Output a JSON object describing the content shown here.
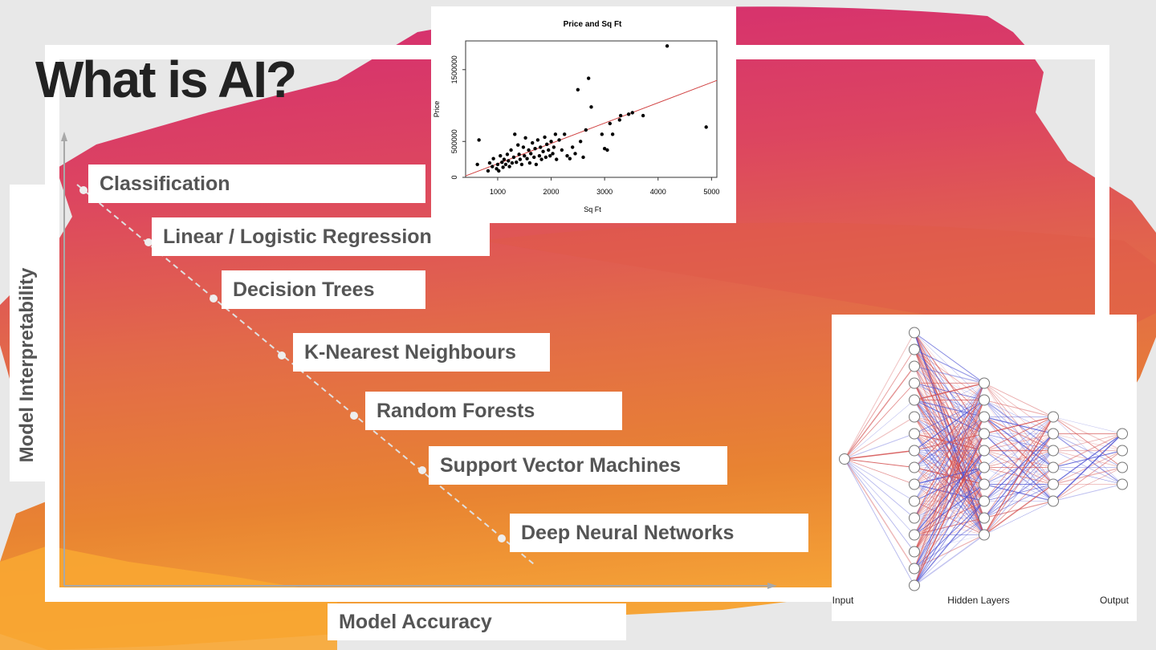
{
  "slide": {
    "title": "What is AI?",
    "y_axis_label": "Model Interpretability",
    "x_axis_label": "Model Accuracy",
    "methods": [
      "Classification",
      "Linear / Logistic Regression",
      "Decision Trees",
      "K-Nearest Neighbours",
      "Random Forests",
      "Support Vector Machines",
      "Deep Neural Networks"
    ]
  },
  "chart_data": {
    "type": "scatter",
    "title": "Price and Sq Ft",
    "xlabel": "Sq Ft",
    "ylabel": "Price",
    "xlim": [
      400,
      5100
    ],
    "ylim": [
      0,
      1900000
    ],
    "xticks": [
      "1000",
      "2000",
      "3000",
      "4000",
      "5000"
    ],
    "yticks": [
      "0",
      "500000",
      "1500000"
    ],
    "points": [
      [
        620,
        180000
      ],
      [
        650,
        520000
      ],
      [
        820,
        90000
      ],
      [
        850,
        200000
      ],
      [
        900,
        150000
      ],
      [
        920,
        260000
      ],
      [
        980,
        120000
      ],
      [
        1000,
        180000
      ],
      [
        1020,
        90000
      ],
      [
        1050,
        300000
      ],
      [
        1080,
        210000
      ],
      [
        1100,
        140000
      ],
      [
        1120,
        250000
      ],
      [
        1150,
        180000
      ],
      [
        1180,
        320000
      ],
      [
        1200,
        230000
      ],
      [
        1220,
        150000
      ],
      [
        1250,
        380000
      ],
      [
        1270,
        200000
      ],
      [
        1300,
        280000
      ],
      [
        1320,
        600000
      ],
      [
        1350,
        210000
      ],
      [
        1380,
        450000
      ],
      [
        1400,
        320000
      ],
      [
        1420,
        250000
      ],
      [
        1450,
        180000
      ],
      [
        1480,
        420000
      ],
      [
        1500,
        300000
      ],
      [
        1520,
        550000
      ],
      [
        1550,
        260000
      ],
      [
        1580,
        380000
      ],
      [
        1600,
        200000
      ],
      [
        1620,
        330000
      ],
      [
        1650,
        480000
      ],
      [
        1680,
        280000
      ],
      [
        1700,
        400000
      ],
      [
        1720,
        180000
      ],
      [
        1750,
        520000
      ],
      [
        1780,
        300000
      ],
      [
        1800,
        420000
      ],
      [
        1820,
        250000
      ],
      [
        1850,
        360000
      ],
      [
        1880,
        560000
      ],
      [
        1900,
        280000
      ],
      [
        1920,
        460000
      ],
      [
        1950,
        380000
      ],
      [
        1980,
        300000
      ],
      [
        2000,
        500000
      ],
      [
        2030,
        330000
      ],
      [
        2050,
        420000
      ],
      [
        2080,
        600000
      ],
      [
        2100,
        250000
      ],
      [
        2150,
        520000
      ],
      [
        2200,
        380000
      ],
      [
        2250,
        600000
      ],
      [
        2300,
        300000
      ],
      [
        2350,
        260000
      ],
      [
        2400,
        420000
      ],
      [
        2450,
        330000
      ],
      [
        2500,
        1220000
      ],
      [
        2550,
        500000
      ],
      [
        2600,
        280000
      ],
      [
        2650,
        660000
      ],
      [
        2700,
        1380000
      ],
      [
        2750,
        980000
      ],
      [
        2950,
        600000
      ],
      [
        3000,
        400000
      ],
      [
        3050,
        380000
      ],
      [
        3100,
        750000
      ],
      [
        3150,
        600000
      ],
      [
        3280,
        800000
      ],
      [
        3300,
        860000
      ],
      [
        3450,
        880000
      ],
      [
        3520,
        900000
      ],
      [
        3720,
        860000
      ],
      [
        4170,
        1830000
      ],
      [
        4900,
        700000
      ]
    ],
    "fit_line": [
      [
        400,
        20000
      ],
      [
        5100,
        1350000
      ]
    ]
  },
  "nn_diagram": {
    "labels": [
      "Input",
      "Hidden Layers",
      "Output"
    ],
    "layers": [
      1,
      16,
      10,
      6,
      4
    ],
    "colors": {
      "positive": "#d34a4a",
      "negative": "#4a4fd3"
    }
  }
}
